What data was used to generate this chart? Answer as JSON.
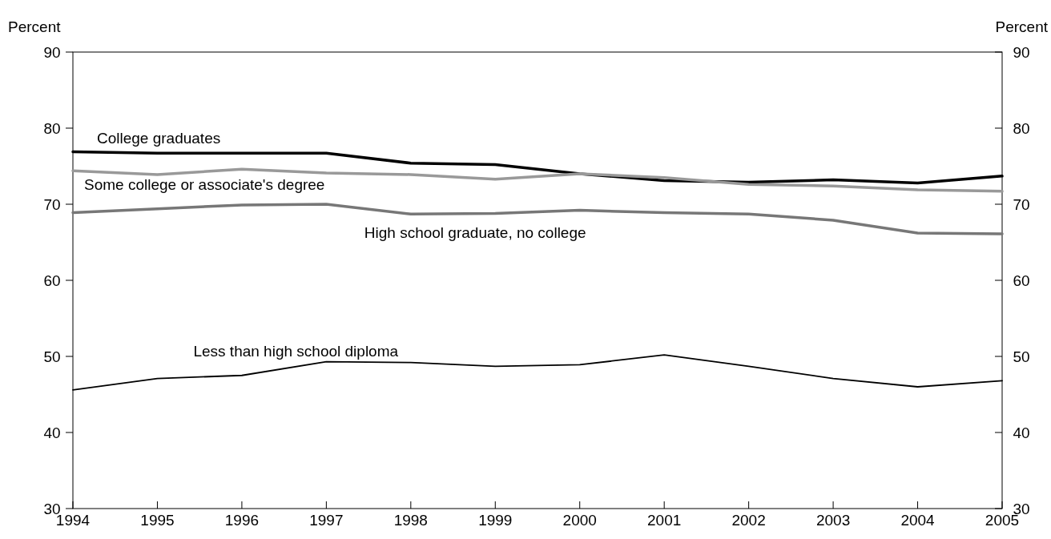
{
  "chart_data": {
    "type": "line",
    "ylabel": "Percent",
    "y2label": "Percent",
    "x": [
      1994,
      1995,
      1996,
      1997,
      1998,
      1999,
      2000,
      2001,
      2002,
      2003,
      2004,
      2005
    ],
    "xlim": [
      1994,
      2005
    ],
    "xticks": [
      1994,
      1995,
      1996,
      1997,
      1998,
      1999,
      2000,
      2001,
      2002,
      2003,
      2004,
      2005
    ],
    "ylim": [
      30,
      90
    ],
    "yticks": [
      30,
      40,
      50,
      60,
      70,
      80,
      90
    ],
    "y2lim": [
      30,
      90
    ],
    "y2ticks": [
      30,
      40,
      50,
      60,
      70,
      80,
      90
    ],
    "grid": false,
    "series": [
      {
        "name": "College graduates",
        "color": "#000000",
        "values": [
          76.9,
          76.7,
          76.7,
          76.7,
          75.4,
          75.2,
          74.0,
          73.1,
          72.9,
          73.2,
          72.8,
          73.7
        ]
      },
      {
        "name": "Some college or associate's degree",
        "color": "#999999",
        "values": [
          74.4,
          73.9,
          74.6,
          74.1,
          73.9,
          73.3,
          74.0,
          73.5,
          72.6,
          72.4,
          71.9,
          71.7
        ]
      },
      {
        "name": "High school graduate, no college",
        "color": "#777777",
        "values": [
          68.9,
          69.4,
          69.9,
          70.0,
          68.7,
          68.8,
          69.2,
          68.9,
          68.7,
          67.9,
          66.2,
          66.1
        ]
      },
      {
        "name": "Less than high school diploma",
        "color": "#000000",
        "values": [
          45.6,
          47.1,
          47.5,
          49.3,
          49.2,
          48.7,
          48.9,
          50.2,
          48.7,
          47.1,
          46.0,
          46.8
        ]
      }
    ]
  }
}
